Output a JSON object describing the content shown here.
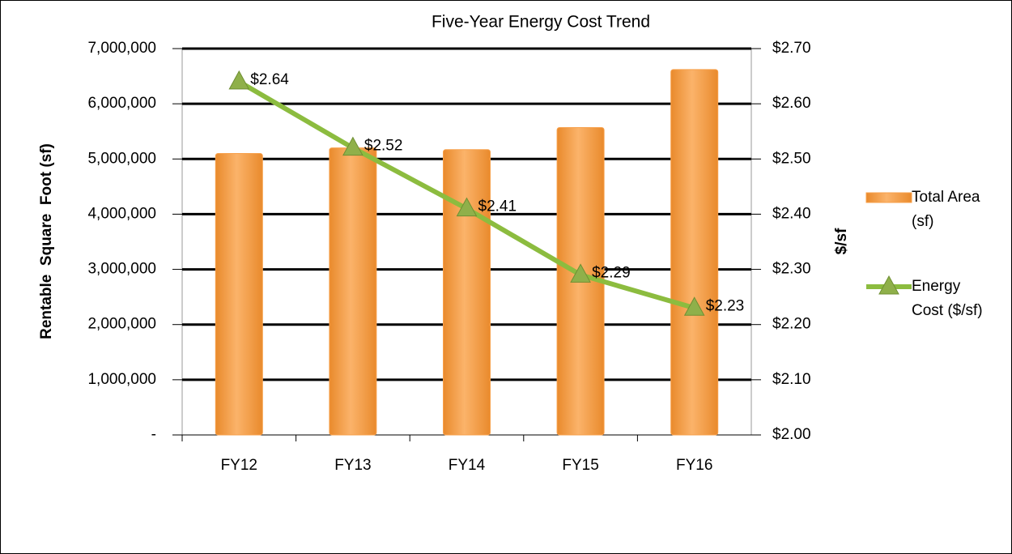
{
  "chart_data": {
    "type": "bar_line",
    "title": "Five-Year Energy Cost Trend",
    "categories": [
      "FY12",
      "FY13",
      "FY14",
      "FY15",
      "FY16"
    ],
    "y_label": "Rentable  Square  Foot (sf)",
    "y2_label": "$/sf",
    "series": [
      {
        "name": "Total Area (sf)",
        "type": "bar",
        "color": "#f7a04b",
        "values": [
          5100000,
          5200000,
          5170000,
          5570000,
          6620000
        ]
      },
      {
        "name": "Energy Cost ($/sf)",
        "type": "line",
        "axis": "y2",
        "color": "#8cbc3f",
        "marker_color": "#8fb04a",
        "values": [
          2.64,
          2.52,
          2.41,
          2.29,
          2.23
        ],
        "value_labels": [
          "$2.64",
          "$2.52",
          "$2.41",
          "$2.29",
          "$2.23"
        ]
      }
    ],
    "ylim": [
      0,
      7000000
    ],
    "yticks": [
      {
        "value": 0,
        "label": "-"
      },
      {
        "value": 1000000,
        "label": "1,000,000"
      },
      {
        "value": 2000000,
        "label": "2,000,000"
      },
      {
        "value": 3000000,
        "label": "3,000,000"
      },
      {
        "value": 4000000,
        "label": "4,000,000"
      },
      {
        "value": 5000000,
        "label": "5,000,000"
      },
      {
        "value": 6000000,
        "label": "6,000,000"
      },
      {
        "value": 7000000,
        "label": "7,000,000"
      }
    ],
    "y2lim": [
      2.0,
      2.7
    ],
    "y2ticks": [
      {
        "value": 2.0,
        "label": "$2.00"
      },
      {
        "value": 2.1,
        "label": "$2.10"
      },
      {
        "value": 2.2,
        "label": "$2.20"
      },
      {
        "value": 2.3,
        "label": "$2.30"
      },
      {
        "value": 2.4,
        "label": "$2.40"
      },
      {
        "value": 2.5,
        "label": "$2.50"
      },
      {
        "value": 2.6,
        "label": "$2.60"
      },
      {
        "value": 2.7,
        "label": "$2.70"
      }
    ],
    "grid": true,
    "legend": "right"
  }
}
